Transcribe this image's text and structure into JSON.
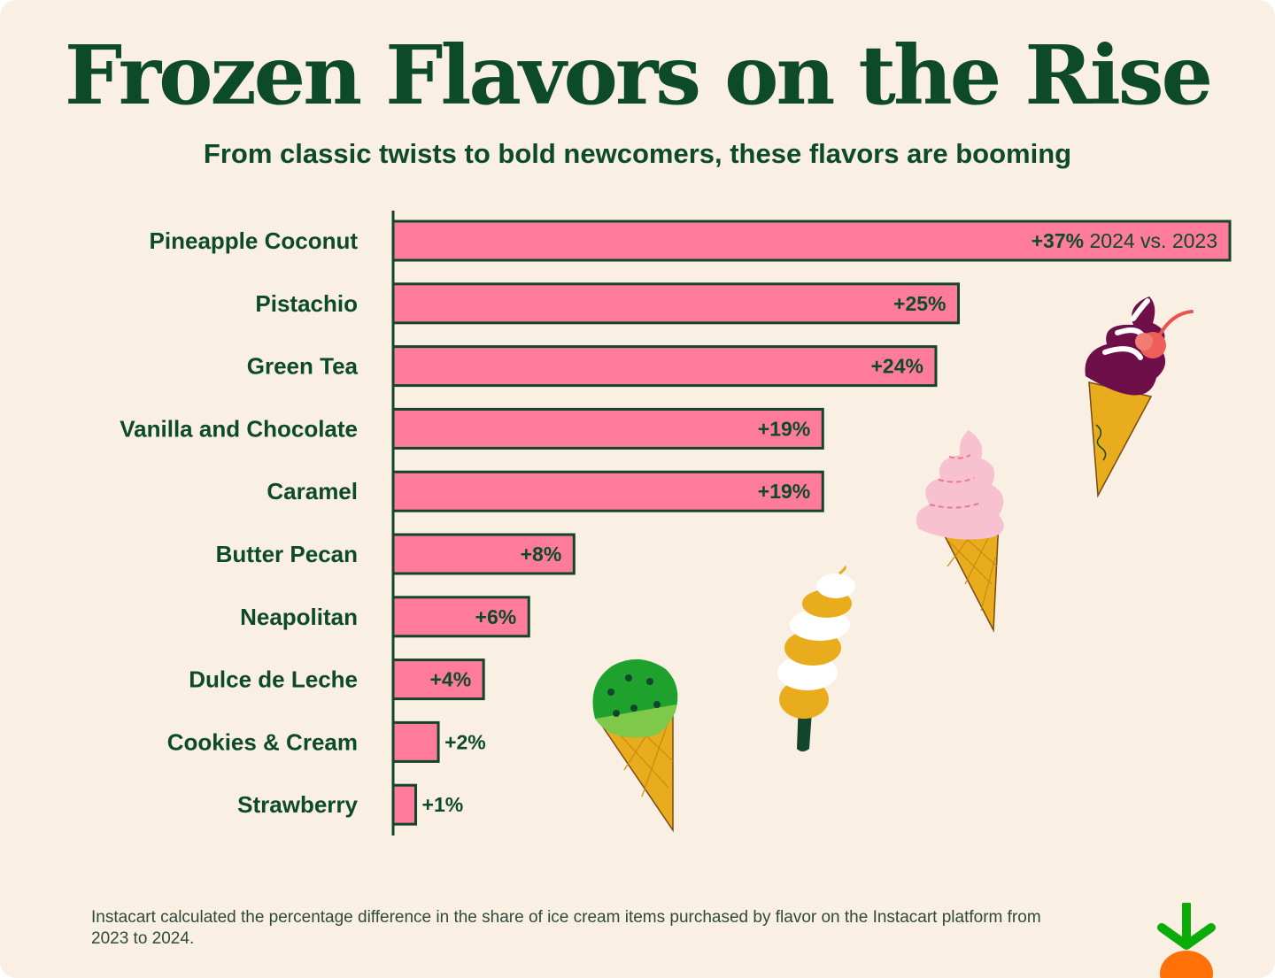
{
  "title": "Frozen Flavors on the Rise",
  "subtitle": "From classic twists to bold newcomers, these flavors are booming",
  "footnote": "Instacart calculated the percentage difference in the share of ice cream items purchased by flavor on the Instacart platform from 2023 to 2024.",
  "colors": {
    "background": "#f9efe3",
    "bar_fill": "#ff7b9c",
    "bar_stroke": "#12452c",
    "text": "#0d4a2a"
  },
  "icons": [
    "swirl-cone-cherry-icon",
    "pink-soft-serve-cone-icon",
    "spiral-popsicle-icon",
    "mint-chip-cone-icon",
    "instacart-carrot-logo-icon"
  ],
  "chart_data": {
    "type": "bar",
    "orientation": "horizontal",
    "categories": [
      "Pineapple Coconut",
      "Pistachio",
      "Green Tea",
      "Vanilla and Chocolate",
      "Caramel",
      "Butter Pecan",
      "Neapolitan",
      "Dulce de Leche",
      "Cookies & Cream",
      "Strawberry"
    ],
    "values": [
      37,
      25,
      24,
      19,
      19,
      8,
      6,
      4,
      2,
      1
    ],
    "data_labels": [
      "+37%",
      "+25%",
      "+24%",
      "+19%",
      "+19%",
      "+8%",
      "+6%",
      "+4%",
      "+2%",
      "+1%"
    ],
    "first_label_suffix": "2024 vs. 2023",
    "xlim": [
      0,
      37
    ],
    "grid": false,
    "legend": "none"
  }
}
